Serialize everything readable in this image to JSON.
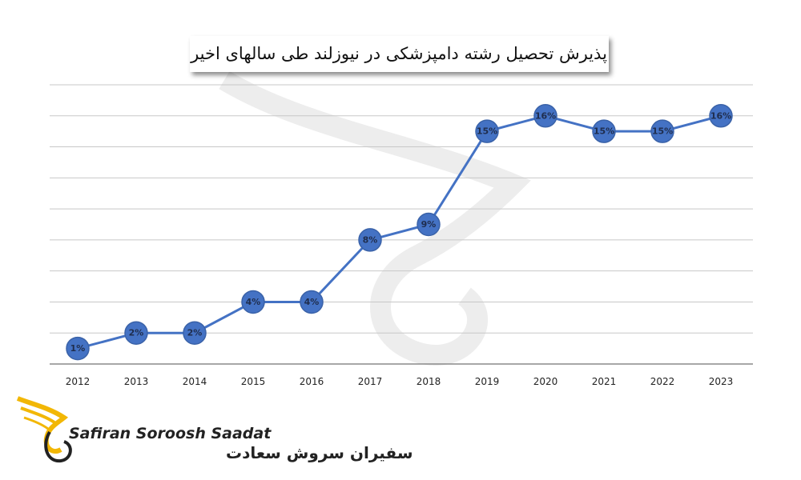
{
  "chart_data": {
    "type": "line",
    "title": "پذیرش تحصیل رشته دامپزشکی در نیوزلند طی سالهای اخیر",
    "categories": [
      "2012",
      "2013",
      "2014",
      "2015",
      "2016",
      "2017",
      "2018",
      "2019",
      "2020",
      "2021",
      "2022",
      "2023"
    ],
    "values": [
      1,
      2,
      2,
      4,
      4,
      8,
      9,
      15,
      16,
      15,
      15,
      16
    ],
    "value_labels": [
      "1%",
      "2%",
      "2%",
      "4%",
      "4%",
      "8%",
      "9%",
      "15%",
      "16%",
      "15%",
      "15%",
      "16%"
    ],
    "color": "#4472c4",
    "ylim": [
      0,
      18
    ],
    "yticks": [
      0,
      2,
      4,
      6,
      8,
      10,
      12,
      14,
      16,
      18
    ],
    "grid": true
  },
  "branding": {
    "latin": "Safiran Soroosh Saadat",
    "persian": "سفیران سروش سعادت"
  }
}
